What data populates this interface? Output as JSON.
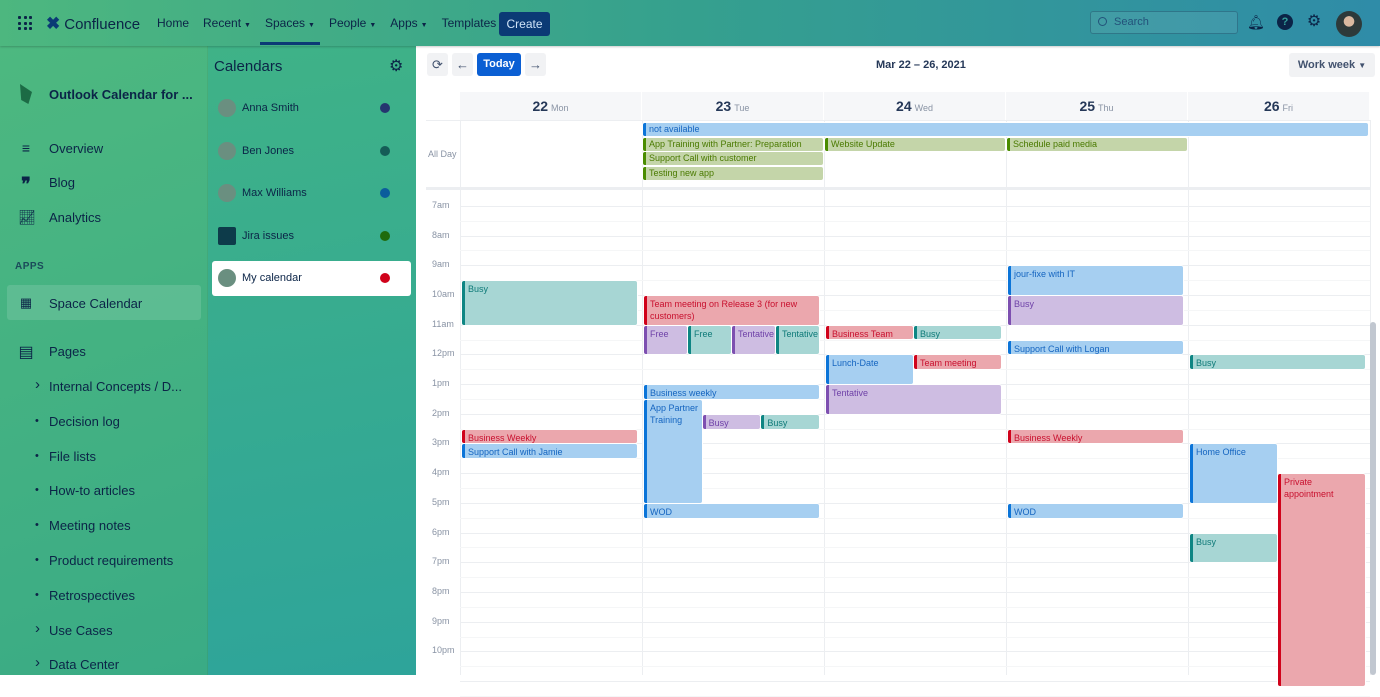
{
  "topbar": {
    "brand": "Confluence",
    "nav": [
      {
        "label": "Home",
        "dropdown": false
      },
      {
        "label": "Recent",
        "dropdown": true
      },
      {
        "label": "Spaces",
        "dropdown": true,
        "active": true
      },
      {
        "label": "People",
        "dropdown": true
      },
      {
        "label": "Apps",
        "dropdown": true
      },
      {
        "label": "Templates",
        "dropdown": false
      }
    ],
    "create": "Create",
    "search_placeholder": "Search"
  },
  "sidebar": {
    "space_title": "Outlook Calendar for ...",
    "items": [
      {
        "label": "Overview",
        "icon": "lines-icon"
      },
      {
        "label": "Blog",
        "icon": "quote-icon"
      },
      {
        "label": "Analytics",
        "icon": "chart-icon"
      }
    ],
    "apps_heading": "APPS",
    "space_calendar": "Space Calendar",
    "pages_label": "Pages",
    "pages": [
      {
        "label": "Internal Concepts / D...",
        "expandable": true
      },
      {
        "label": "Decision log"
      },
      {
        "label": "File lists"
      },
      {
        "label": "How-to articles"
      },
      {
        "label": "Meeting notes"
      },
      {
        "label": "Product requirements"
      },
      {
        "label": "Retrospectives"
      },
      {
        "label": "Use Cases",
        "expandable": true
      },
      {
        "label": "Data Center",
        "expandable": true
      }
    ]
  },
  "calendars": {
    "title": "Calendars",
    "items": [
      {
        "name": "Anna Smith",
        "color": "#25356f"
      },
      {
        "name": "Ben Jones",
        "color": "#155c57"
      },
      {
        "name": "Max Williams",
        "color": "#0b5d9c"
      },
      {
        "name": "Jira issues",
        "color": "#1f6b0d"
      },
      {
        "name": "My calendar",
        "color": "#d0021b",
        "selected": true
      }
    ]
  },
  "toolbar": {
    "today": "Today",
    "range": "Mar 22 – 26, 2021",
    "view": "Work week"
  },
  "days": [
    {
      "num": "22",
      "name": "Mon"
    },
    {
      "num": "23",
      "name": "Tue"
    },
    {
      "num": "24",
      "name": "Wed"
    },
    {
      "num": "25",
      "name": "Thu"
    },
    {
      "num": "26",
      "name": "Fri"
    }
  ],
  "allday_label": "All Day",
  "hours": [
    "7am",
    "8am",
    "9am",
    "10am",
    "11am",
    "12pm",
    "1pm",
    "2pm",
    "3pm",
    "4pm",
    "5pm",
    "6pm",
    "7pm",
    "8pm",
    "9pm",
    "10pm"
  ],
  "colors": {
    "blue": [
      "#a6cff1",
      "#0b74d8",
      "#1565c0"
    ],
    "red": [
      "#eba7ad",
      "#d0021b",
      "#c8102e"
    ],
    "teal": [
      "#a7d6d4",
      "#0e8583",
      "#0e7a78"
    ],
    "purple": [
      "#cebde2",
      "#7d4fb0",
      "#6f42a8"
    ],
    "green": [
      "#c4d5a9",
      "#4a8c00",
      "#4a7a00"
    ]
  },
  "allday_events": [
    {
      "title": "not available",
      "day": 1,
      "span": 4,
      "row": 0,
      "color": "blue"
    },
    {
      "title": "App Training with Partner: Preparation",
      "day": 1,
      "span": 1,
      "row": 1,
      "color": "green"
    },
    {
      "title": "Support Call with customer",
      "day": 1,
      "span": 1,
      "row": 2,
      "color": "green"
    },
    {
      "title": "Testing new app",
      "day": 1,
      "span": 1,
      "row": 3,
      "color": "green"
    },
    {
      "title": "Website Update",
      "day": 2,
      "span": 1,
      "row": 1,
      "color": "green"
    },
    {
      "title": "Schedule paid media",
      "day": 3,
      "span": 1,
      "row": 1,
      "color": "green"
    }
  ],
  "events": [
    {
      "title": "Busy",
      "day": 0,
      "start": 9.5,
      "end": 11,
      "lane": 0,
      "lanes": 1,
      "color": "teal"
    },
    {
      "title": "Business Weekly",
      "day": 0,
      "start": 14.5,
      "end": 15,
      "lane": 0,
      "lanes": 1,
      "color": "red"
    },
    {
      "title": "Support Call with Jamie",
      "day": 0,
      "start": 15,
      "end": 15.5,
      "lane": 0,
      "lanes": 1,
      "color": "blue"
    },
    {
      "title": "Team meeting on Release 3 (for new customers)",
      "day": 1,
      "start": 10,
      "end": 11,
      "lane": 0,
      "lanes": 1,
      "color": "red"
    },
    {
      "title": "Free",
      "day": 1,
      "start": 11,
      "end": 12,
      "lane": 0,
      "lanes": 4,
      "color": "purple"
    },
    {
      "title": "Free",
      "day": 1,
      "start": 11,
      "end": 12,
      "lane": 1,
      "lanes": 4,
      "color": "teal"
    },
    {
      "title": "Tentative",
      "day": 1,
      "start": 11,
      "end": 12,
      "lane": 2,
      "lanes": 4,
      "color": "purple"
    },
    {
      "title": "Tentative",
      "day": 1,
      "start": 11,
      "end": 12,
      "lane": 3,
      "lanes": 4,
      "color": "teal"
    },
    {
      "title": "Business weekly",
      "day": 1,
      "start": 13,
      "end": 13.5,
      "lane": 0,
      "lanes": 1,
      "color": "blue"
    },
    {
      "title": "App Partner Training",
      "day": 1,
      "start": 13.5,
      "end": 17,
      "lane": 0,
      "lanes": 3,
      "color": "blue"
    },
    {
      "title": "Busy",
      "day": 1,
      "start": 14,
      "end": 14.5,
      "lane": 1,
      "lanes": 3,
      "color": "purple"
    },
    {
      "title": "Busy",
      "day": 1,
      "start": 14,
      "end": 14.5,
      "lane": 2,
      "lanes": 3,
      "color": "teal"
    },
    {
      "title": "WOD",
      "day": 1,
      "start": 17,
      "end": 17.5,
      "lane": 0,
      "lanes": 1,
      "color": "blue"
    },
    {
      "title": "Business Team",
      "day": 2,
      "start": 11,
      "end": 11.5,
      "lane": 0,
      "lanes": 2,
      "color": "red"
    },
    {
      "title": "Busy",
      "day": 2,
      "start": 11,
      "end": 11.5,
      "lane": 1,
      "lanes": 2,
      "color": "teal"
    },
    {
      "title": "Lunch-Date",
      "day": 2,
      "start": 12,
      "end": 13,
      "lane": 0,
      "lanes": 2,
      "color": "blue"
    },
    {
      "title": "Team meeting",
      "day": 2,
      "start": 12,
      "end": 12.5,
      "lane": 1,
      "lanes": 2,
      "color": "red"
    },
    {
      "title": "Tentative",
      "day": 2,
      "start": 13,
      "end": 14,
      "lane": 0,
      "lanes": 1,
      "color": "purple"
    },
    {
      "title": "jour-fixe with IT",
      "day": 3,
      "start": 9,
      "end": 10,
      "lane": 0,
      "lanes": 1,
      "color": "blue"
    },
    {
      "title": "Busy",
      "day": 3,
      "start": 10,
      "end": 11,
      "lane": 0,
      "lanes": 1,
      "color": "purple"
    },
    {
      "title": "Support Call with Logan",
      "day": 3,
      "start": 11.5,
      "end": 12,
      "lane": 0,
      "lanes": 1,
      "color": "blue"
    },
    {
      "title": "Business Weekly",
      "day": 3,
      "start": 14.5,
      "end": 15,
      "lane": 0,
      "lanes": 1,
      "color": "red"
    },
    {
      "title": "WOD",
      "day": 3,
      "start": 17,
      "end": 17.5,
      "lane": 0,
      "lanes": 1,
      "color": "blue"
    },
    {
      "title": "Busy",
      "day": 4,
      "start": 12,
      "end": 12.5,
      "lane": 0,
      "lanes": 1,
      "color": "teal"
    },
    {
      "title": "Home Office",
      "day": 4,
      "start": 15,
      "end": 17,
      "lane": 0,
      "lanes": 2,
      "color": "blue"
    },
    {
      "title": "Private appointment",
      "day": 4,
      "start": 16,
      "end": 24,
      "lane": 1,
      "lanes": 2,
      "color": "red"
    },
    {
      "title": "Busy",
      "day": 4,
      "start": 18,
      "end": 19,
      "lane": 0,
      "lanes": 2,
      "color": "teal"
    }
  ]
}
